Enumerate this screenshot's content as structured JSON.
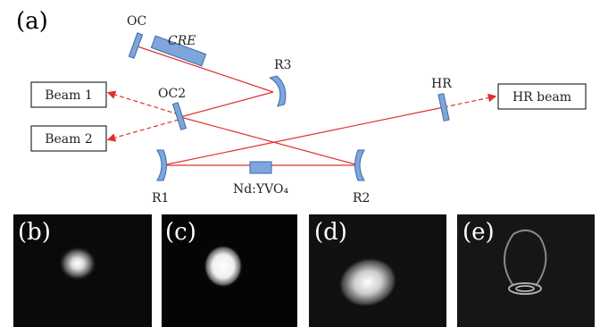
{
  "panel_a": {
    "label": "(a)",
    "oc": "OC",
    "cre": "CRE",
    "r3": "R3",
    "oc2": "OC2",
    "hr": "HR",
    "hr_beam": "HR beam",
    "beam1": "Beam 1",
    "beam2": "Beam 2",
    "r1": "R1",
    "r2": "R2",
    "crystal": "Nd:YVO₄"
  },
  "panels": [
    {
      "label": "(b)"
    },
    {
      "label": "(c)"
    },
    {
      "label": "(d)"
    },
    {
      "label": "(e)"
    }
  ]
}
